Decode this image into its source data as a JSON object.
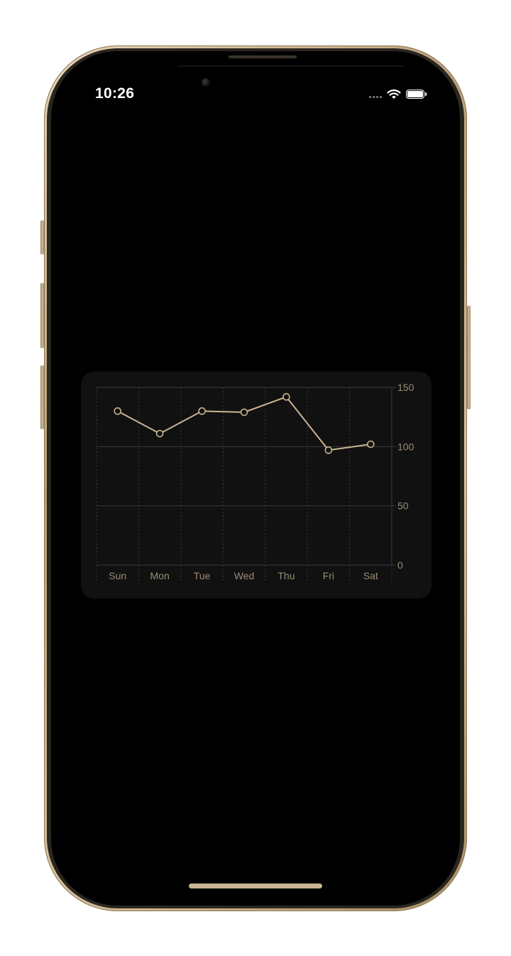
{
  "status_bar": {
    "time": "10:26",
    "battery_level": 1.0,
    "icons": [
      "cellular-dots-icon",
      "wifi-icon",
      "battery-icon"
    ]
  },
  "colors": {
    "accent": "#c9b592",
    "card_background": "#111111",
    "grid": "#3a3a3a",
    "tick_label": "#9b8c74"
  },
  "chart_data": {
    "type": "line",
    "categories": [
      "Sun",
      "Mon",
      "Tue",
      "Wed",
      "Thu",
      "Fri",
      "Sat"
    ],
    "values": [
      130,
      111,
      130,
      129,
      142,
      97,
      102
    ],
    "y_ticks": [
      "150",
      "100",
      "50",
      "0"
    ],
    "y_tick_values": [
      150,
      100,
      50,
      0
    ],
    "ylim": [
      0,
      150
    ],
    "y_axis_position": "right",
    "grid": true,
    "markers": "hollow-circle"
  }
}
